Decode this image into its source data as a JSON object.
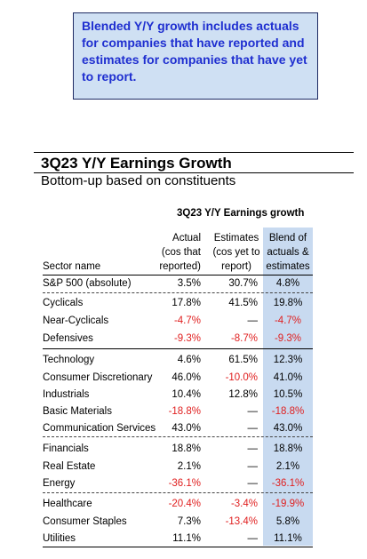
{
  "callout": "Blended Y/Y growth includes actuals for companies that have reported and estimates for companies that have yet to report.",
  "title": "3Q23 Y/Y Earnings Growth",
  "subtitle": "Bottom-up based on constituents",
  "table_title": "3Q23 Y/Y Earnings growth",
  "headers": {
    "sector": "Sector name",
    "actual": [
      "Actual",
      "(cos that",
      "reported)"
    ],
    "estimates": [
      "Estimates",
      "(cos yet to",
      "report)"
    ],
    "blend": [
      "Blend of",
      "actuals &",
      "estimates"
    ]
  },
  "rows": [
    {
      "name": "S&P 500 (absolute)",
      "actual": "3.5%",
      "est": "30.7%",
      "blend": "4.8%"
    },
    {
      "name": "Cyclicals",
      "actual": "17.8%",
      "est": "41.5%",
      "blend": "19.8%"
    },
    {
      "name": "Near-Cyclicals",
      "actual": "-4.7%",
      "est": "—",
      "blend": "-4.7%"
    },
    {
      "name": "Defensives",
      "actual": "-9.3%",
      "est": "-8.7%",
      "blend": "-9.3%"
    },
    {
      "name": "Technology",
      "actual": "4.6%",
      "est": "61.5%",
      "blend": "12.3%"
    },
    {
      "name": "Consumer Discretionary",
      "actual": "46.0%",
      "est": "-10.0%",
      "blend": "41.0%"
    },
    {
      "name": "Industrials",
      "actual": "10.4%",
      "est": "12.8%",
      "blend": "10.5%"
    },
    {
      "name": "Basic Materials",
      "actual": "-18.8%",
      "est": "—",
      "blend": "-18.8%"
    },
    {
      "name": "Communication Services",
      "actual": "43.0%",
      "est": "—",
      "blend": "43.0%"
    },
    {
      "name": "Financials",
      "actual": "18.8%",
      "est": "—",
      "blend": "18.8%"
    },
    {
      "name": "Real Estate",
      "actual": "2.1%",
      "est": "—",
      "blend": "2.1%"
    },
    {
      "name": "Energy",
      "actual": "-36.1%",
      "est": "—",
      "blend": "-36.1%"
    },
    {
      "name": "Healthcare",
      "actual": "-20.4%",
      "est": "-3.4%",
      "blend": "-19.9%"
    },
    {
      "name": "Consumer Staples",
      "actual": "7.3%",
      "est": "-13.4%",
      "blend": "5.8%"
    },
    {
      "name": "Utilities",
      "actual": "11.1%",
      "est": "—",
      "blend": "11.1%"
    }
  ],
  "colors": {
    "negative": "#e02020",
    "callout_text": "#1f2fd0",
    "callout_bg": "#cfe0f3",
    "blend_bg": "#c8daf0"
  }
}
